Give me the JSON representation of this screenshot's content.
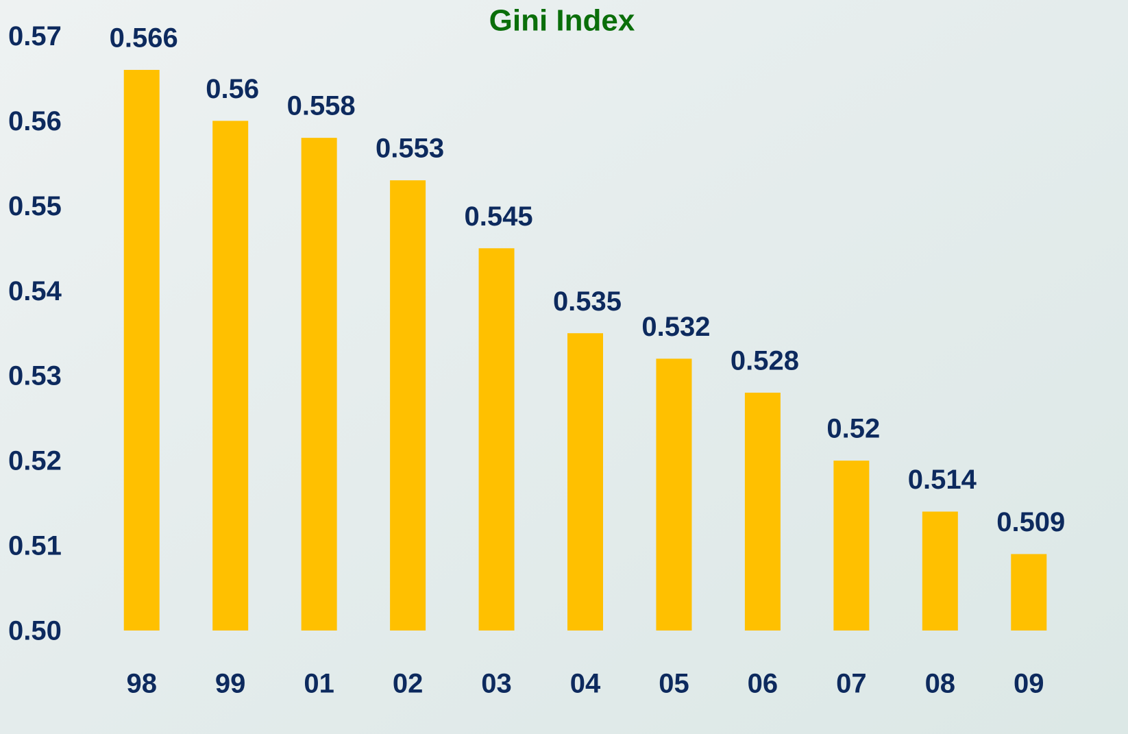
{
  "chart_data": {
    "type": "bar",
    "title": "Gini Index",
    "categories": [
      "98",
      "99",
      "01",
      "02",
      "03",
      "04",
      "05",
      "06",
      "07",
      "08",
      "09"
    ],
    "values": [
      0.566,
      0.56,
      0.558,
      0.553,
      0.545,
      0.535,
      0.532,
      0.528,
      0.52,
      0.514,
      0.509
    ],
    "color": "#ffc000",
    "ylim": [
      0.5,
      0.57
    ],
    "yticks": [
      {
        "value": 0.5,
        "label": "0.50"
      },
      0.51,
      0.52,
      0.53,
      0.54,
      0.55,
      0.56,
      0.57
    ]
  }
}
